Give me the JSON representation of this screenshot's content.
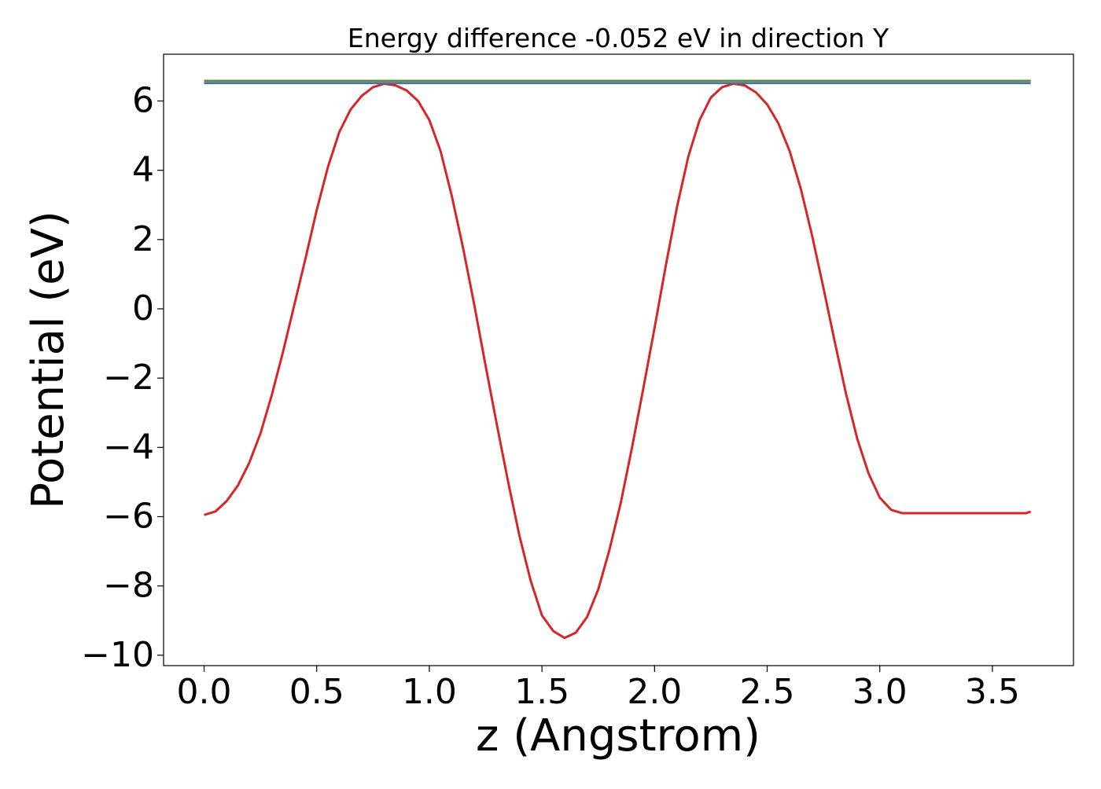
{
  "chart_data": {
    "type": "line",
    "title": "Energy difference -0.052 eV in direction Y",
    "xlabel": "z (Angstrom)",
    "ylabel": "Potential (eV)",
    "xlim": [
      -0.18,
      3.86
    ],
    "ylim": [
      -10.3,
      7.35
    ],
    "xticks": [
      0.0,
      0.5,
      1.0,
      1.5,
      2.0,
      2.5,
      3.0,
      3.5
    ],
    "xtick_labels": [
      "0.0",
      "0.5",
      "1.0",
      "1.5",
      "2.0",
      "2.5",
      "3.0",
      "3.5"
    ],
    "yticks": [
      -10,
      -8,
      -6,
      -4,
      -2,
      0,
      2,
      4,
      6
    ],
    "ytick_labels": [
      "−10",
      "−8",
      "−6",
      "−4",
      "−2",
      "0",
      "2",
      "4",
      "6"
    ],
    "grid": false,
    "legend": null,
    "series": [
      {
        "color": "#d62728",
        "x": [
          0.0,
          0.05,
          0.1,
          0.15,
          0.2,
          0.25,
          0.3,
          0.35,
          0.4,
          0.45,
          0.5,
          0.55,
          0.6,
          0.65,
          0.7,
          0.75,
          0.8,
          0.85,
          0.9,
          0.95,
          1.0,
          1.05,
          1.1,
          1.15,
          1.2,
          1.25,
          1.3,
          1.35,
          1.4,
          1.45,
          1.5,
          1.55,
          1.6,
          1.65,
          1.7,
          1.75,
          1.8,
          1.85,
          1.9,
          1.95,
          2.0,
          2.05,
          2.1,
          2.15,
          2.2,
          2.25,
          2.3,
          2.35,
          2.4,
          2.45,
          2.5,
          2.55,
          2.6,
          2.65,
          2.7,
          2.75,
          2.8,
          2.85,
          2.9,
          2.95,
          3.0,
          3.05,
          3.1,
          3.15,
          3.2,
          3.25,
          3.3,
          3.35,
          3.4,
          3.45,
          3.5,
          3.55,
          3.6,
          3.65,
          3.67
        ],
        "y": [
          -5.95,
          -5.85,
          -5.55,
          -5.1,
          -4.45,
          -3.6,
          -2.5,
          -1.25,
          0.1,
          1.45,
          2.85,
          4.1,
          5.1,
          5.75,
          6.15,
          6.4,
          6.5,
          6.45,
          6.3,
          6.0,
          5.45,
          4.55,
          3.25,
          1.75,
          0.1,
          -1.65,
          -3.35,
          -5.0,
          -6.55,
          -7.85,
          -8.85,
          -9.3,
          -9.5,
          -9.35,
          -8.9,
          -8.1,
          -6.95,
          -5.6,
          -4.0,
          -2.3,
          -0.55,
          1.25,
          2.95,
          4.4,
          5.45,
          6.1,
          6.4,
          6.5,
          6.45,
          6.25,
          5.9,
          5.35,
          4.55,
          3.45,
          2.1,
          0.6,
          -0.95,
          -2.45,
          -3.75,
          -4.75,
          -5.45,
          -5.8,
          -5.9,
          -5.9,
          -5.9,
          -5.9,
          -5.9,
          -5.9,
          -5.9,
          -5.9,
          -5.9,
          -5.9,
          -5.9,
          -5.9,
          -5.85
        ]
      },
      {
        "color": "#1f77b4",
        "x": [
          0.0,
          3.67
        ],
        "y": [
          6.52,
          6.52
        ]
      },
      {
        "color": "#2ca02c",
        "x": [
          0.0,
          3.67
        ],
        "y": [
          6.58,
          6.58
        ]
      },
      {
        "color": "#7f7f7f",
        "x": [
          0.0,
          3.67
        ],
        "y": [
          6.55,
          6.55
        ]
      }
    ]
  }
}
